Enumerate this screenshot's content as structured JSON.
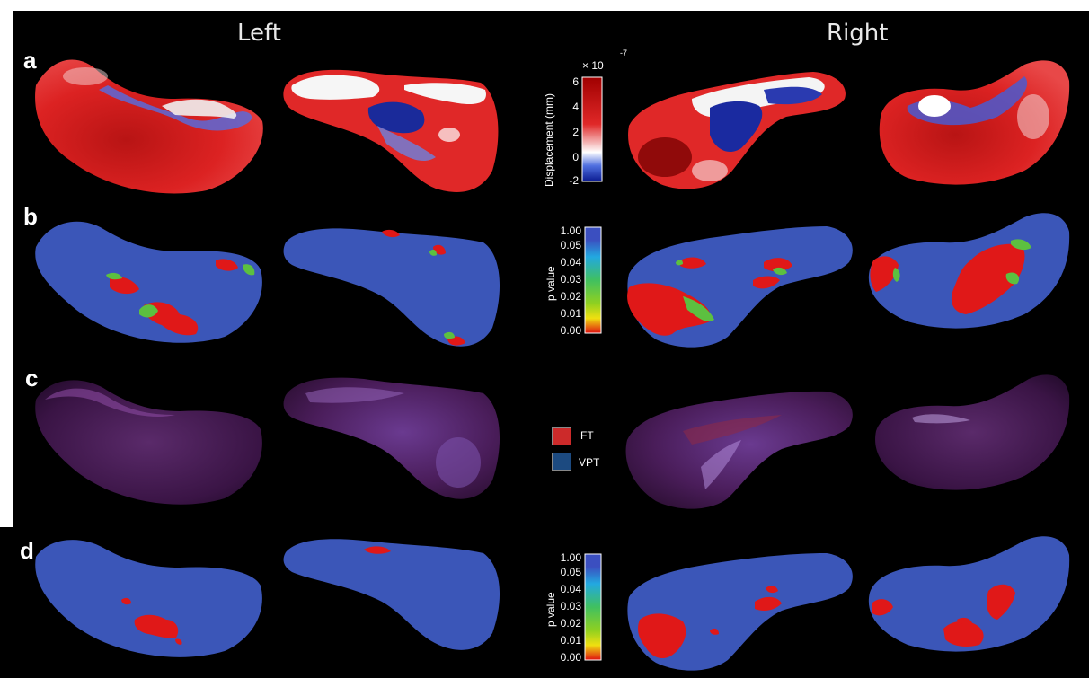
{
  "headers": {
    "left": "Left",
    "right": "Right"
  },
  "rows": [
    {
      "label": "a"
    },
    {
      "label": "b"
    },
    {
      "label": "c"
    },
    {
      "label": "d"
    }
  ],
  "displacement_colorbar": {
    "title": "Displacement (mm)",
    "multiplier_base": "× 10",
    "multiplier_exponent": "-7",
    "ticks": [
      "6",
      "4",
      "2",
      "0",
      "-2"
    ],
    "colors": [
      "#b00000",
      "#e02020",
      "#ffffff",
      "#4060e0",
      "#1020a0"
    ]
  },
  "pvalue_colorbar_b": {
    "title": "p value",
    "ticks": [
      "1.00",
      "0.05",
      "0.04",
      "0.03",
      "0.02",
      "0.01",
      "0.00"
    ]
  },
  "pvalue_colorbar_d": {
    "title": "p value",
    "ticks": [
      "1.00",
      "0.05",
      "0.04",
      "0.03",
      "0.02",
      "0.01",
      "0.00"
    ]
  },
  "legend": {
    "items": [
      {
        "label": "FT",
        "color": "#cc2a2a"
      },
      {
        "label": "VPT",
        "color": "#1c4a80"
      }
    ]
  },
  "colors": {
    "background": "#000000",
    "surface_blue": "#3b56b8",
    "significant_red": "#e01818",
    "transition_green": "#5cc040",
    "overlay_purple": "#4a1d5a"
  }
}
